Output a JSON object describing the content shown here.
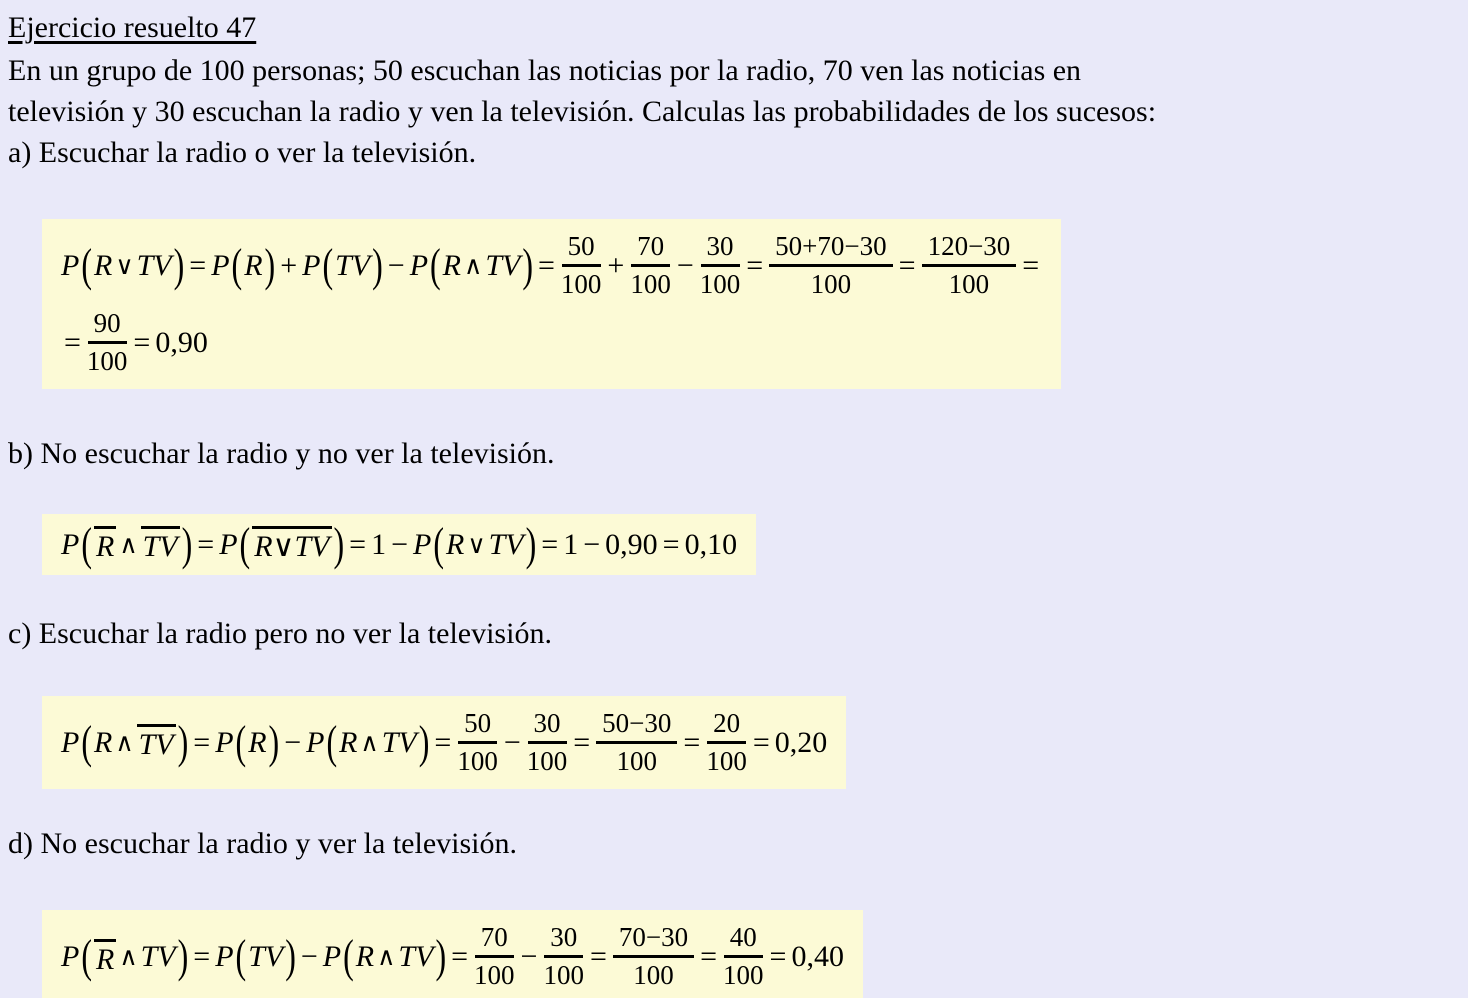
{
  "colors": {
    "background": "#e9e9f9",
    "formula_highlight": "#fcfad6",
    "text": "#000000"
  },
  "header": {
    "title": "Ejercicio resuelto 47"
  },
  "intro": {
    "lines": [
      "En un grupo de 100 personas; 50 escuchan las noticias por la radio, 70 ven las noticias en",
      "televisión y 30 escuchan la radio y ven la televisión. Calculas las probabilidades de los sucesos:"
    ]
  },
  "sections": [
    {
      "id": "a",
      "label": "a) Escuchar la radio o ver la televisión.",
      "formula": {
        "lines": [
          [
            {
              "t": "i",
              "v": "P"
            },
            {
              "t": "p",
              "v": "("
            },
            {
              "t": "i",
              "v": "R"
            },
            {
              "t": "l",
              "v": "∨"
            },
            {
              "t": "i",
              "v": "TV"
            },
            {
              "t": "p",
              "v": ")"
            },
            {
              "t": "o",
              "v": "="
            },
            {
              "t": "i",
              "v": "P"
            },
            {
              "t": "p",
              "v": "("
            },
            {
              "t": "i",
              "v": "R"
            },
            {
              "t": "p",
              "v": ")"
            },
            {
              "t": "o",
              "v": "+"
            },
            {
              "t": "i",
              "v": "P"
            },
            {
              "t": "p",
              "v": "("
            },
            {
              "t": "i",
              "v": "TV"
            },
            {
              "t": "p",
              "v": ")"
            },
            {
              "t": "o",
              "v": "−"
            },
            {
              "t": "i",
              "v": "P"
            },
            {
              "t": "p",
              "v": "("
            },
            {
              "t": "i",
              "v": "R"
            },
            {
              "t": "l",
              "v": "∧"
            },
            {
              "t": "i",
              "v": "TV"
            },
            {
              "t": "p",
              "v": ")"
            },
            {
              "t": "o",
              "v": "="
            },
            {
              "t": "frac",
              "num": "50",
              "den": "100"
            },
            {
              "t": "o",
              "v": "+"
            },
            {
              "t": "frac",
              "num": "70",
              "den": "100"
            },
            {
              "t": "o",
              "v": "−"
            },
            {
              "t": "frac",
              "num": "30",
              "den": "100"
            },
            {
              "t": "o",
              "v": "="
            },
            {
              "t": "frac",
              "num": "50+70−30",
              "den": "100"
            },
            {
              "t": "o",
              "v": "="
            },
            {
              "t": "frac",
              "num": "120−30",
              "den": "100"
            },
            {
              "t": "o",
              "v": "="
            }
          ],
          [
            {
              "t": "o",
              "v": "="
            },
            {
              "t": "frac",
              "num": "90",
              "den": "100"
            },
            {
              "t": "o",
              "v": "="
            },
            {
              "t": "r",
              "v": "0,90"
            }
          ]
        ]
      }
    },
    {
      "id": "b",
      "label": "b) No escuchar la radio y no ver la televisión.",
      "formula": {
        "lines": [
          [
            {
              "t": "i",
              "v": "P"
            },
            {
              "t": "p",
              "v": "("
            },
            {
              "t": "bar",
              "v": "R"
            },
            {
              "t": "l",
              "v": "∧"
            },
            {
              "t": "bar",
              "v": "TV"
            },
            {
              "t": "p",
              "v": ")"
            },
            {
              "t": "o",
              "v": "="
            },
            {
              "t": "i",
              "v": "P"
            },
            {
              "t": "p",
              "v": "("
            },
            {
              "t": "bar",
              "v": "R∨TV"
            },
            {
              "t": "p",
              "v": ")"
            },
            {
              "t": "o",
              "v": "="
            },
            {
              "t": "r",
              "v": "1"
            },
            {
              "t": "o",
              "v": "−"
            },
            {
              "t": "i",
              "v": "P"
            },
            {
              "t": "p",
              "v": "("
            },
            {
              "t": "i",
              "v": "R"
            },
            {
              "t": "l",
              "v": "∨"
            },
            {
              "t": "i",
              "v": "TV"
            },
            {
              "t": "p",
              "v": ")"
            },
            {
              "t": "o",
              "v": "="
            },
            {
              "t": "r",
              "v": "1"
            },
            {
              "t": "o",
              "v": "−"
            },
            {
              "t": "r",
              "v": "0,90"
            },
            {
              "t": "o",
              "v": "="
            },
            {
              "t": "r",
              "v": "0,10"
            }
          ]
        ]
      }
    },
    {
      "id": "c",
      "label": "c) Escuchar la radio pero no ver la televisión.",
      "formula": {
        "lines": [
          [
            {
              "t": "i",
              "v": "P"
            },
            {
              "t": "p",
              "v": "("
            },
            {
              "t": "i",
              "v": "R"
            },
            {
              "t": "l",
              "v": "∧"
            },
            {
              "t": "bar",
              "v": "TV"
            },
            {
              "t": "p",
              "v": ")"
            },
            {
              "t": "o",
              "v": "="
            },
            {
              "t": "i",
              "v": "P"
            },
            {
              "t": "p",
              "v": "("
            },
            {
              "t": "i",
              "v": "R"
            },
            {
              "t": "p",
              "v": ")"
            },
            {
              "t": "o",
              "v": "−"
            },
            {
              "t": "i",
              "v": "P"
            },
            {
              "t": "p",
              "v": "("
            },
            {
              "t": "i",
              "v": "R"
            },
            {
              "t": "l",
              "v": "∧"
            },
            {
              "t": "i",
              "v": "TV"
            },
            {
              "t": "p",
              "v": ")"
            },
            {
              "t": "o",
              "v": "="
            },
            {
              "t": "frac",
              "num": "50",
              "den": "100"
            },
            {
              "t": "o",
              "v": "−"
            },
            {
              "t": "frac",
              "num": "30",
              "den": "100"
            },
            {
              "t": "o",
              "v": "="
            },
            {
              "t": "frac",
              "num": "50−30",
              "den": "100"
            },
            {
              "t": "o",
              "v": "="
            },
            {
              "t": "frac",
              "num": "20",
              "den": "100"
            },
            {
              "t": "o",
              "v": "="
            },
            {
              "t": "r",
              "v": "0,20"
            }
          ]
        ]
      }
    },
    {
      "id": "d",
      "label": "d) No escuchar la radio y ver la televisión.",
      "formula": {
        "lines": [
          [
            {
              "t": "i",
              "v": "P"
            },
            {
              "t": "p",
              "v": "("
            },
            {
              "t": "bar",
              "v": "R"
            },
            {
              "t": "l",
              "v": "∧"
            },
            {
              "t": "i",
              "v": "TV"
            },
            {
              "t": "p",
              "v": ")"
            },
            {
              "t": "o",
              "v": "="
            },
            {
              "t": "i",
              "v": "P"
            },
            {
              "t": "p",
              "v": "("
            },
            {
              "t": "i",
              "v": "TV"
            },
            {
              "t": "p",
              "v": ")"
            },
            {
              "t": "o",
              "v": "−"
            },
            {
              "t": "i",
              "v": "P"
            },
            {
              "t": "p",
              "v": "("
            },
            {
              "t": "i",
              "v": "R"
            },
            {
              "t": "l",
              "v": "∧"
            },
            {
              "t": "i",
              "v": "TV"
            },
            {
              "t": "p",
              "v": ")"
            },
            {
              "t": "o",
              "v": "="
            },
            {
              "t": "frac",
              "num": "70",
              "den": "100"
            },
            {
              "t": "o",
              "v": "−"
            },
            {
              "t": "frac",
              "num": "30",
              "den": "100"
            },
            {
              "t": "o",
              "v": "="
            },
            {
              "t": "frac",
              "num": "70−30",
              "den": "100"
            },
            {
              "t": "o",
              "v": "="
            },
            {
              "t": "frac",
              "num": "40",
              "den": "100"
            },
            {
              "t": "o",
              "v": "="
            },
            {
              "t": "r",
              "v": "0,40"
            }
          ]
        ]
      }
    }
  ]
}
